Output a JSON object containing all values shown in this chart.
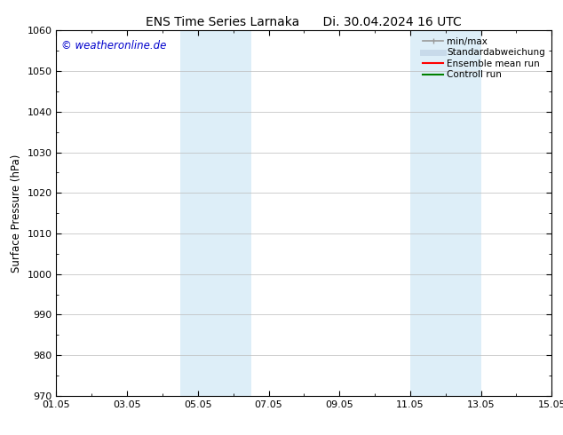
{
  "title": "ENS Time Series Larnaka      Di. 30.04.2024 16 UTC",
  "ylabel": "Surface Pressure (hPa)",
  "ylim": [
    970,
    1060
  ],
  "yticks": [
    970,
    980,
    990,
    1000,
    1010,
    1020,
    1030,
    1040,
    1050,
    1060
  ],
  "xlim": [
    0,
    14
  ],
  "xtick_labels": [
    "01.05",
    "03.05",
    "05.05",
    "07.05",
    "09.05",
    "11.05",
    "13.05",
    "15.05"
  ],
  "xtick_positions": [
    0,
    2,
    4,
    6,
    8,
    10,
    12,
    14
  ],
  "shaded_bands": [
    {
      "x_start": 3.5,
      "x_end": 5.5,
      "color": "#ddeef8"
    },
    {
      "x_start": 10.0,
      "x_end": 12.0,
      "color": "#ddeef8"
    }
  ],
  "watermark": "© weatheronline.de",
  "watermark_color": "#0000cc",
  "legend_items": [
    {
      "label": "min/max",
      "color": "#999999",
      "lw": 1.2,
      "style": "line_with_caps"
    },
    {
      "label": "Standardabweichung",
      "color": "#c8daea",
      "lw": 5,
      "style": "thick_line"
    },
    {
      "label": "Ensemble mean run",
      "color": "#ff0000",
      "lw": 1.5,
      "style": "line"
    },
    {
      "label": "Controll run",
      "color": "#008000",
      "lw": 1.5,
      "style": "line"
    }
  ],
  "background_color": "#ffffff",
  "grid_color": "#bbbbbb",
  "title_fontsize": 10,
  "tick_label_fontsize": 8,
  "ylabel_fontsize": 8.5,
  "watermark_fontsize": 8.5,
  "legend_fontsize": 7.5
}
